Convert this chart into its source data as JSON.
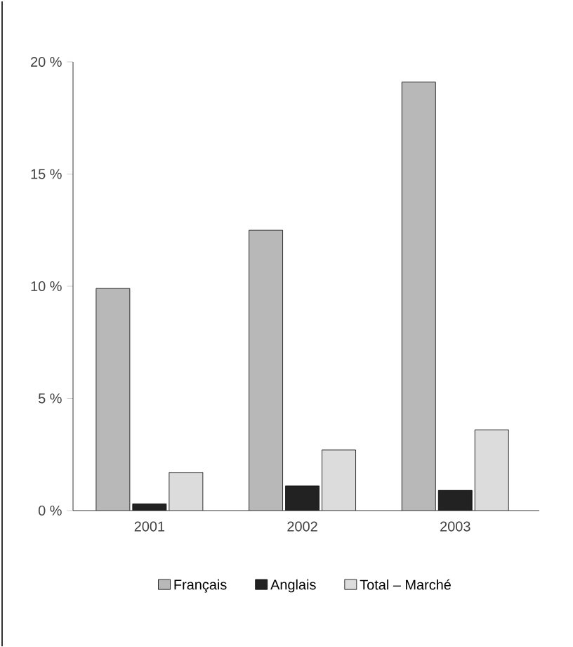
{
  "chart_data": {
    "type": "bar",
    "categories": [
      "2001",
      "2002",
      "2003"
    ],
    "series": [
      {
        "name": "Français",
        "color": "#b8b8b8",
        "values": [
          9.9,
          12.5,
          19.1
        ]
      },
      {
        "name": "Anglais",
        "color": "#222222",
        "values": [
          0.3,
          1.1,
          0.9
        ]
      },
      {
        "name": "Total – Marché",
        "color": "#dcdcdc",
        "values": [
          1.7,
          2.7,
          3.6
        ]
      }
    ],
    "ylim": [
      0,
      20
    ],
    "yticks": [
      {
        "value": 0,
        "label": "0 %"
      },
      {
        "value": 5,
        "label": "5 %"
      },
      {
        "value": 10,
        "label": "10 %"
      },
      {
        "value": 15,
        "label": "15 %"
      },
      {
        "value": 20,
        "label": "20 %"
      }
    ],
    "grid": false,
    "legend": "bottom"
  }
}
